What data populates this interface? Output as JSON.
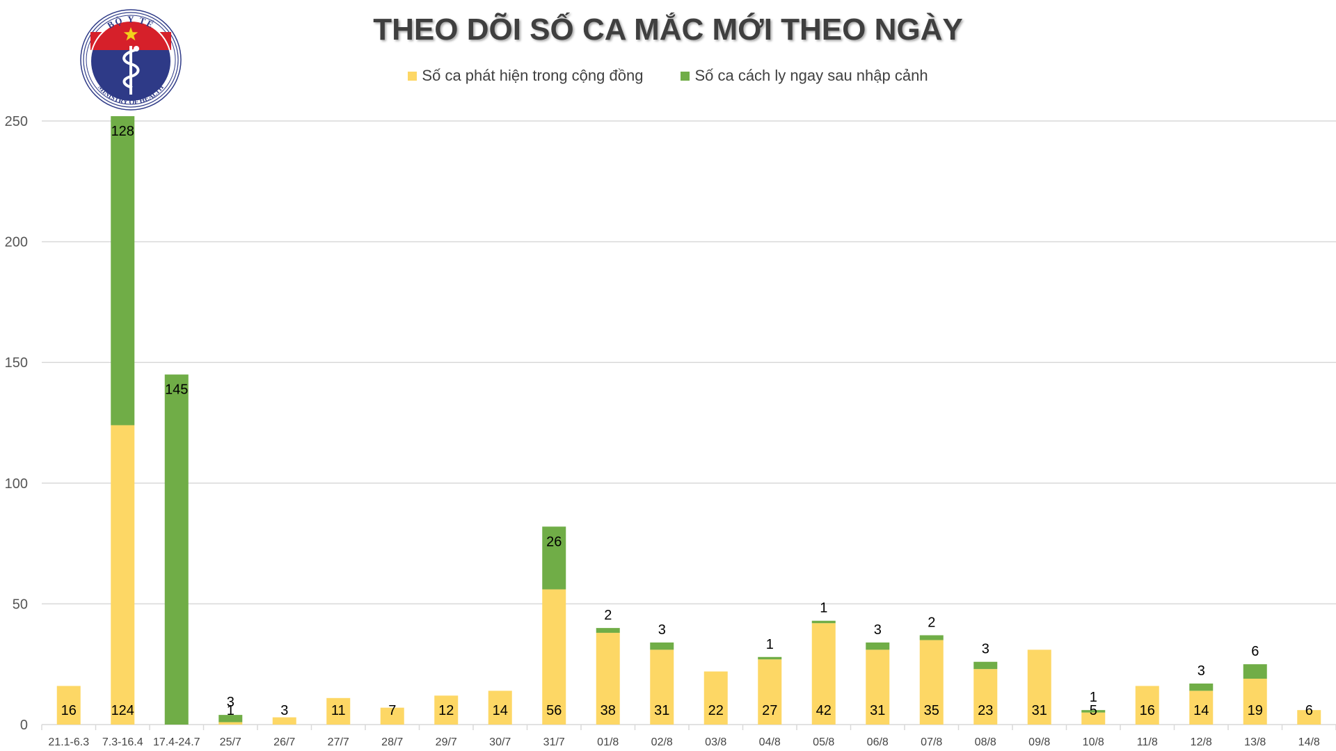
{
  "logo": {
    "top_text": "BỘ Y TẾ",
    "bottom_text": "MINISTRY OF HEALTH",
    "colors": {
      "ring": "#2e3a87",
      "red": "#d6202a",
      "star": "#f3d21b"
    }
  },
  "colors": {
    "community": "#fdd765",
    "quarantine": "#70ad47",
    "grid": "#d9d9d9"
  },
  "chart_data": {
    "type": "bar",
    "stacked": true,
    "title": "THEO DÕI SỐ CA MẮC MỚI THEO NGÀY",
    "xlabel": "",
    "ylabel": "",
    "ylim": [
      0,
      250
    ],
    "yticks": [
      0,
      50,
      100,
      150,
      200,
      250
    ],
    "grid": true,
    "legend_position": "top-center",
    "categories": [
      "21.1-6.3",
      "7.3-16.4",
      "17.4-24.7",
      "25/7",
      "26/7",
      "27/7",
      "28/7",
      "29/7",
      "30/7",
      "31/7",
      "01/8",
      "02/8",
      "03/8",
      "04/8",
      "05/8",
      "06/8",
      "07/8",
      "08/8",
      "09/8",
      "10/8",
      "11/8",
      "12/8",
      "13/8",
      "14/8"
    ],
    "series": [
      {
        "name": "Số ca phát hiện trong cộng đồng",
        "color": "#fdd765",
        "values": [
          16,
          124,
          0,
          1,
          3,
          11,
          7,
          12,
          14,
          56,
          38,
          31,
          22,
          27,
          42,
          31,
          35,
          23,
          31,
          5,
          16,
          14,
          19,
          6
        ],
        "labels": [
          "16",
          "124",
          "",
          "1",
          "3",
          "11",
          "7",
          "12",
          "14",
          "56",
          "38",
          "31",
          "22",
          "27",
          "42",
          "31",
          "35",
          "23",
          "31",
          "5",
          "16",
          "14",
          "19",
          "6"
        ]
      },
      {
        "name": "Số ca cách ly ngay sau nhập cảnh",
        "color": "#70ad47",
        "values": [
          0,
          128,
          145,
          3,
          0,
          0,
          0,
          0,
          0,
          26,
          2,
          3,
          0,
          1,
          1,
          3,
          2,
          3,
          0,
          1,
          0,
          3,
          6,
          0
        ],
        "labels": [
          "",
          "128",
          "145",
          "3",
          "",
          "",
          "",
          "",
          "",
          "26",
          "2",
          "3",
          "",
          "1",
          "1",
          "3",
          "2",
          "3",
          "",
          "1",
          "",
          "3",
          "6",
          ""
        ]
      }
    ]
  }
}
